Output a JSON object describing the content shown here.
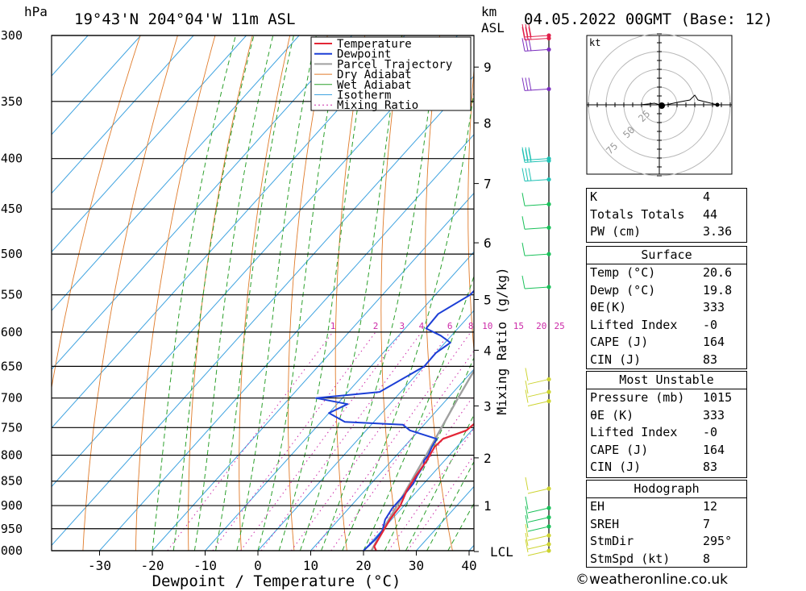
{
  "header": {
    "hpa_unit": "hPa",
    "location": "19°43'N  204°04'W  11m  ASL",
    "km_unit": "km",
    "asl_unit": "ASL",
    "datetime": "04.05.2022  00GMT  (Base: 12)"
  },
  "colors": {
    "temperature": "#e32636",
    "dewpoint": "#1c3fd6",
    "parcel": "#a0a0a0",
    "dry_adiabat": "#e07b2a",
    "wet_adiabat": "#2ca02c",
    "isotherm": "#3fa3e0",
    "mixing_ratio": "#cc2aa8",
    "wind_barb_low": "#cdd431",
    "wind_barb_mid": "#1ac15a",
    "wind_barb_cyan": "#1fc1b4",
    "wind_barb_upper": "#7b2fbf",
    "wind_barb_top": "#e0204a"
  },
  "chart_data": {
    "type": "line",
    "subtype": "skew-T log-p sounding",
    "title": "19°43'N  204°04'W  11m  ASL",
    "xlabel": "Dewpoint / Temperature (°C)",
    "ylabel": "hPa",
    "right_axis_label": "Mixing Ratio (g/kg)",
    "x_ticks": [
      -30,
      -20,
      -10,
      0,
      10,
      20,
      30,
      40
    ],
    "xlim": [
      -40,
      40
    ],
    "pressure_ticks": [
      300,
      350,
      400,
      450,
      500,
      550,
      600,
      650,
      700,
      750,
      800,
      850,
      900,
      950,
      1000
    ],
    "ylim": [
      1000,
      300
    ],
    "km_ticks": [
      {
        "label": "9",
        "p": 323
      },
      {
        "label": "8",
        "p": 368
      },
      {
        "label": "7",
        "p": 424
      },
      {
        "label": "6",
        "p": 487
      },
      {
        "label": "5",
        "p": 556
      },
      {
        "label": "4",
        "p": 626
      },
      {
        "label": "3",
        "p": 713
      },
      {
        "label": "2",
        "p": 805
      },
      {
        "label": "1",
        "p": 900
      },
      {
        "label": "LCL",
        "p": 1002
      }
    ],
    "mixing_ratio_labels": [
      "1",
      "2",
      "3",
      "4",
      "6",
      "8",
      "10",
      "15",
      "20",
      "25"
    ],
    "mixing_ratio_values": [
      1,
      2,
      3,
      4,
      6,
      8,
      10,
      15,
      20,
      25
    ],
    "legend": [
      "Temperature",
      "Dewpoint",
      "Parcel Trajectory",
      "Dry Adiabat",
      "Wet Adiabat",
      "Isotherm",
      "Mixing Ratio"
    ],
    "legend_position": "top-left",
    "series": [
      {
        "name": "Temperature",
        "points": [
          [
            1000,
            22.4
          ],
          [
            990,
            21.3
          ],
          [
            960,
            20.5
          ],
          [
            930,
            19.7
          ],
          [
            900,
            19.3
          ],
          [
            870,
            18.0
          ],
          [
            840,
            17.2
          ],
          [
            810,
            16.6
          ],
          [
            785,
            15.8
          ],
          [
            770,
            16.0
          ],
          [
            755,
            19.0
          ],
          [
            735,
            19.6
          ],
          [
            715,
            20.0
          ],
          [
            700,
            20.3
          ],
          [
            680,
            18.4
          ],
          [
            650,
            15.5
          ],
          [
            620,
            12.6
          ],
          [
            600,
            10.8
          ],
          [
            580,
            9.6
          ],
          [
            555,
            8.2
          ],
          [
            540,
            8.1
          ],
          [
            520,
            7.0
          ],
          [
            500,
            6.0
          ],
          [
            480,
            3.9
          ],
          [
            460,
            1.9
          ],
          [
            450,
            1.3
          ],
          [
            430,
            0.1
          ],
          [
            400,
            -2.7
          ],
          [
            380,
            -5.0
          ],
          [
            360,
            -8.4
          ],
          [
            345,
            -11.0
          ],
          [
            330,
            -12.4
          ],
          [
            315,
            -14.7
          ],
          [
            300,
            -16.5
          ]
        ]
      },
      {
        "name": "Dewpoint",
        "points": [
          [
            1000,
            20.0
          ],
          [
            975,
            20.3
          ],
          [
            955,
            20.2
          ],
          [
            930,
            18.8
          ],
          [
            905,
            18.2
          ],
          [
            880,
            18.2
          ],
          [
            855,
            18.0
          ],
          [
            840,
            17.4
          ],
          [
            820,
            16.9
          ],
          [
            810,
            16.1
          ],
          [
            800,
            16.0
          ],
          [
            785,
            15.3
          ],
          [
            770,
            14.8
          ],
          [
            755,
            8.3
          ],
          [
            745,
            6.0
          ],
          [
            740,
            -5.5
          ],
          [
            725,
            -10.0
          ],
          [
            710,
            -8.0
          ],
          [
            700,
            -15.0
          ],
          [
            690,
            -4.0
          ],
          [
            650,
            0.1
          ],
          [
            630,
            0.0
          ],
          [
            615,
            1.0
          ],
          [
            605,
            -2.0
          ],
          [
            595,
            -6.0
          ],
          [
            575,
            -6.2
          ],
          [
            550,
            -3.4
          ],
          [
            530,
            -3.2
          ],
          [
            520,
            -5.0
          ],
          [
            500,
            -9.5
          ],
          [
            490,
            -6.1
          ],
          [
            475,
            -7.5
          ],
          [
            460,
            -7.5
          ],
          [
            450,
            -14.0
          ],
          [
            430,
            -14.4
          ],
          [
            400,
            -14.0
          ],
          [
            385,
            -10.4
          ],
          [
            370,
            -16.0
          ],
          [
            360,
            -12.7
          ],
          [
            353,
            -3.3
          ],
          [
            345,
            -5.5
          ],
          [
            340,
            -13.2
          ],
          [
            332,
            -9.0
          ],
          [
            322,
            -7.8
          ],
          [
            315,
            -4.5
          ],
          [
            305,
            -3.8
          ],
          [
            300,
            -3.3
          ]
        ]
      },
      {
        "name": "Parcel Trajectory",
        "points": [
          [
            1000,
            21.5
          ],
          [
            950,
            20.0
          ],
          [
            900,
            18.7
          ],
          [
            850,
            17.2
          ],
          [
            800,
            15.6
          ],
          [
            750,
            13.8
          ],
          [
            700,
            11.9
          ],
          [
            650,
            10.0
          ],
          [
            600,
            8.3
          ],
          [
            550,
            6.2
          ],
          [
            500,
            3.9
          ],
          [
            450,
            1.0
          ],
          [
            400,
            -2.5
          ],
          [
            350,
            -7.5
          ],
          [
            300,
            -14.5
          ]
        ]
      }
    ],
    "hodograph": {
      "unit_label": "kt",
      "ring_labels": [
        "25",
        "50",
        "75"
      ]
    },
    "wind_barbs": [
      {
        "p": 1000
      },
      {
        "p": 985
      },
      {
        "p": 965
      },
      {
        "p": 945
      },
      {
        "p": 925
      },
      {
        "p": 905
      },
      {
        "p": 865
      },
      {
        "p": 705
      },
      {
        "p": 690
      },
      {
        "p": 670
      },
      {
        "p": 540
      },
      {
        "p": 500
      },
      {
        "p": 470
      },
      {
        "p": 445
      },
      {
        "p": 420
      },
      {
        "p": 400
      },
      {
        "p": 402
      },
      {
        "p": 340
      },
      {
        "p": 310
      },
      {
        "p": 302
      },
      {
        "p": 300
      }
    ]
  },
  "indices_box": {
    "rows": [
      {
        "label": "K",
        "value": "4"
      },
      {
        "label": "Totals Totals",
        "value": "44"
      },
      {
        "label": "PW (cm)",
        "value": "3.36"
      }
    ]
  },
  "surface_box": {
    "title": "Surface",
    "rows": [
      {
        "label": "Temp (°C)",
        "value": "20.6"
      },
      {
        "label": "Dewp (°C)",
        "value": "19.8"
      },
      {
        "label": "θE(K)",
        "value": "333"
      },
      {
        "label": "Lifted Index",
        "value": "-0"
      },
      {
        "label": "CAPE (J)",
        "value": "164"
      },
      {
        "label": "CIN (J)",
        "value": "83"
      }
    ]
  },
  "unstable_box": {
    "title": "Most Unstable",
    "rows": [
      {
        "label": "Pressure (mb)",
        "value": "1015"
      },
      {
        "label": "θE (K)",
        "value": "333"
      },
      {
        "label": "Lifted Index",
        "value": "-0"
      },
      {
        "label": "CAPE (J)",
        "value": "164"
      },
      {
        "label": "CIN (J)",
        "value": "83"
      }
    ]
  },
  "hodograph_box": {
    "title": "Hodograph",
    "rows": [
      {
        "label": "EH",
        "value": "12"
      },
      {
        "label": "SREH",
        "value": "7"
      },
      {
        "label": "StmDir",
        "value": "295°"
      },
      {
        "label": "StmSpd (kt)",
        "value": "8"
      }
    ]
  },
  "footer": {
    "credit": "©weatheronline.co.uk"
  }
}
